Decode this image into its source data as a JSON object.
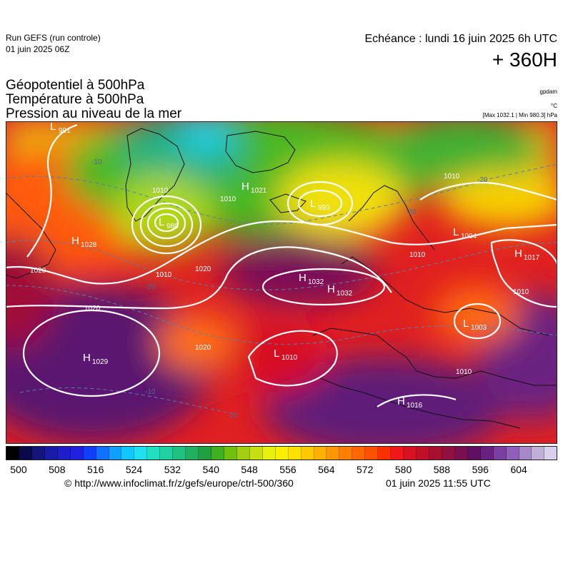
{
  "header": {
    "run_title": "Run GEFS (run controle)",
    "run_date": "01 juin 2025 06Z",
    "forecast": "Echéance : lundi 16 juin 2025 6h UTC",
    "lead": "+ 360H"
  },
  "params": {
    "geopotential": "Géopotentiel à 500hPa",
    "temperature": "Température à 500hPa",
    "pressure": "Pression au niveau de la mer"
  },
  "units": {
    "geopotential": "gpdam",
    "temperature": "°C",
    "pressure_range": "[Max 1032.1 | Min 980.3] hPa"
  },
  "colors": {
    "palette": [
      "#000000",
      "#0a0a4a",
      "#14147a",
      "#1a1aa8",
      "#1e1ec8",
      "#2020e0",
      "#1040ff",
      "#1070ff",
      "#10a0ff",
      "#10c8ff",
      "#20e0f0",
      "#20e0c0",
      "#20d0a0",
      "#20c080",
      "#20b060",
      "#20a040",
      "#40b020",
      "#70c010",
      "#a0d010",
      "#c8e010",
      "#e8f010",
      "#f8f000",
      "#ffe000",
      "#ffc800",
      "#ffb000",
      "#ff9800",
      "#ff8000",
      "#ff6800",
      "#ff5000",
      "#ff3000",
      "#f01818",
      "#d81020",
      "#c01028",
      "#a81030",
      "#901040",
      "#781050",
      "#601060",
      "#6a2080",
      "#7a40a0",
      "#9060b8",
      "#a888c8",
      "#c0b0d8",
      "#d8d0ec"
    ],
    "contours": "#ffffff"
  },
  "map": {
    "isobars": [
      "1020",
      "1010",
      "1020",
      "1010",
      "1020",
      "1020",
      "1010",
      "1010",
      "1010",
      "1010",
      "1010"
    ],
    "temp_contours": [
      "-20",
      "-20",
      "-10",
      "-10",
      "-10",
      "-20"
    ],
    "systems": [
      {
        "type": "L",
        "value": "991"
      },
      {
        "type": "L",
        "value": "980"
      },
      {
        "type": "H",
        "value": "1021"
      },
      {
        "type": "L",
        "value": "993"
      },
      {
        "type": "H",
        "value": "1028"
      },
      {
        "type": "L",
        "value": "1004"
      },
      {
        "type": "H",
        "value": "1017"
      },
      {
        "type": "H",
        "value": "1032"
      },
      {
        "type": "H",
        "value": "1032"
      },
      {
        "type": "L",
        "value": "1003"
      },
      {
        "type": "H",
        "value": "1029"
      },
      {
        "type": "L",
        "value": "1010"
      },
      {
        "type": "H",
        "value": "1016"
      }
    ]
  },
  "colorbar": {
    "ticks": [
      "500",
      "508",
      "516",
      "524",
      "532",
      "540",
      "548",
      "556",
      "564",
      "572",
      "580",
      "588",
      "596",
      "604"
    ]
  },
  "footer": {
    "source": "© http://www.infoclimat.fr/z/gefs/europe/ctrl-500/360",
    "issued": "01 juin 2025 11:55 UTC"
  }
}
